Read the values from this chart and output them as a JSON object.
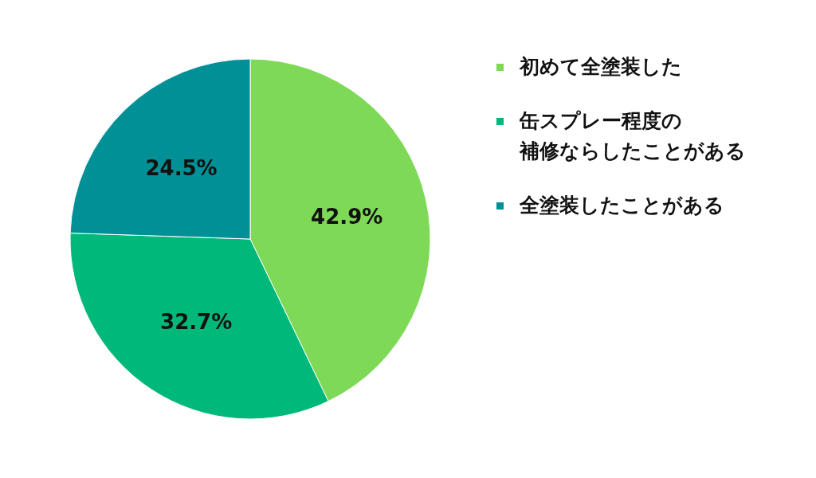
{
  "chart_data": {
    "type": "pie",
    "categories": [
      "初めて全塗装した",
      "缶スプレー程度の補修ならしたことがある",
      "全塗装したことがある"
    ],
    "values": [
      42.9,
      32.7,
      24.5
    ],
    "colors": [
      "#7ed957",
      "#00b87a",
      "#009095"
    ],
    "value_labels": [
      "42.9%",
      "32.7%",
      "24.5%"
    ],
    "legend": "right"
  }
}
